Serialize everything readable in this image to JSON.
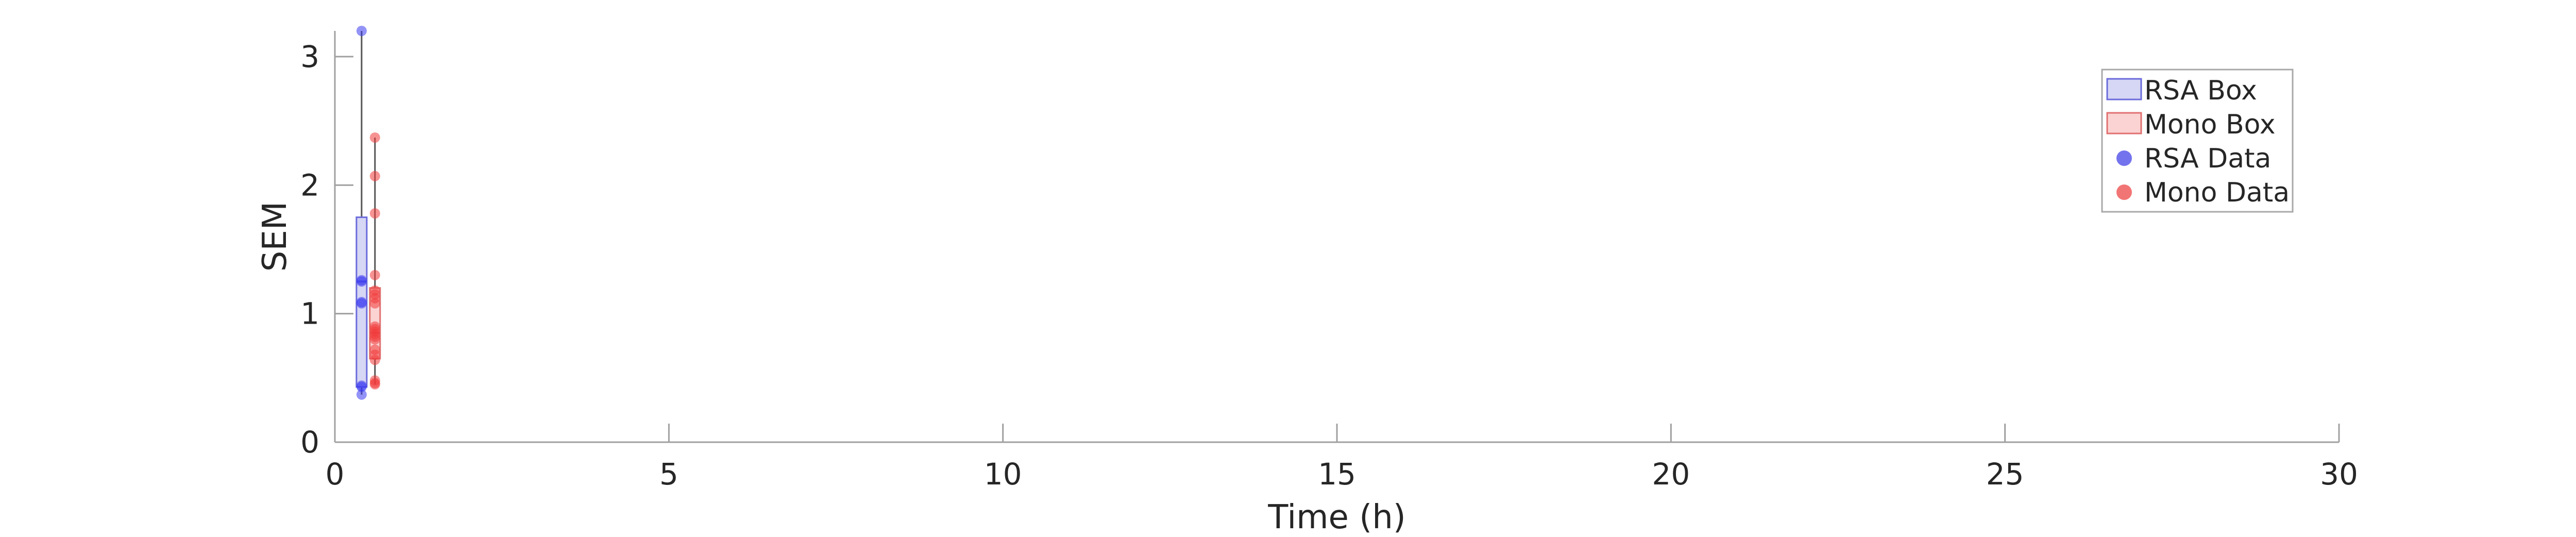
{
  "chart_data": {
    "type": "box",
    "xlabel": "Time (h)",
    "ylabel": "SEM",
    "xlim": [
      0,
      30
    ],
    "ylim": [
      0,
      3.2
    ],
    "x_ticks": [
      "0",
      "5",
      "10",
      "15",
      "20",
      "25",
      "30"
    ],
    "y_ticks": [
      "0",
      "1",
      "2",
      "3"
    ],
    "grid": false,
    "legend_position": "top-right",
    "legend": [
      {
        "label": "RSA Box",
        "marker": "box",
        "fill": "#d6d6f5",
        "edge": "#6b6bdc"
      },
      {
        "label": "Mono Box",
        "marker": "box",
        "fill": "#fbd3d3",
        "edge": "#e07070"
      },
      {
        "label": "RSA Data",
        "marker": "dot",
        "color": "#7373ee"
      },
      {
        "label": "Mono Data",
        "marker": "dot",
        "color": "#f27575"
      }
    ],
    "series": [
      {
        "label": "RSA",
        "x": 0.4,
        "box": {
          "whisker_low": 0.37,
          "q1": 0.43,
          "median": 1.25,
          "q3": 1.75,
          "whisker_high": 3.2
        },
        "points": [
          3.2,
          1.25,
          1.26,
          1.09,
          1.08,
          0.44,
          0.43,
          0.37
        ],
        "box_fill": "#d6d6f5",
        "box_edge": "#6b6bdc",
        "point_color": "#3b3bf0"
      },
      {
        "label": "Mono",
        "x": 0.6,
        "box": {
          "whisker_low": 0.45,
          "q1": 0.65,
          "median": 0.85,
          "q3": 1.2,
          "whisker_high": 2.37
        },
        "points": [
          2.37,
          2.07,
          1.78,
          1.3,
          1.18,
          1.15,
          1.12,
          1.08,
          0.9,
          0.88,
          0.86,
          0.84,
          0.82,
          0.8,
          0.72,
          0.68,
          0.64,
          0.48,
          0.46,
          0.45
        ],
        "box_fill": "#fbd3d3",
        "box_edge": "#e07070",
        "point_color": "#f03b3b"
      }
    ]
  }
}
